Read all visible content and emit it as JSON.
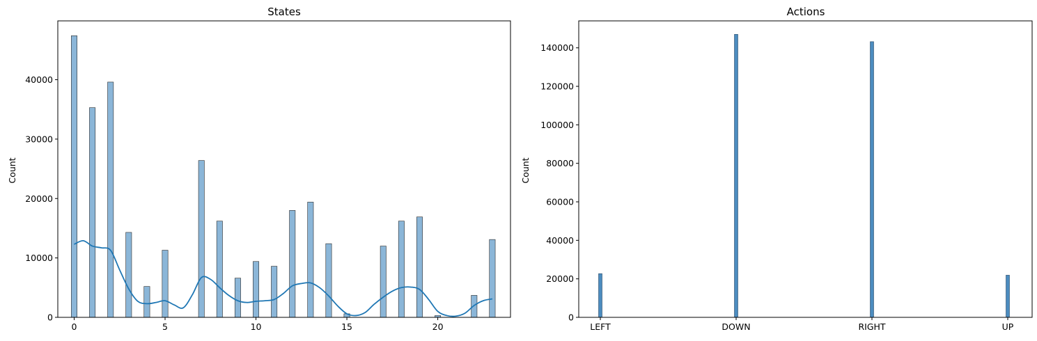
{
  "chart_data": [
    {
      "type": "bar",
      "title": "States",
      "xlabel": "",
      "ylabel": "Count",
      "xlim": [
        -0.9,
        24.0
      ],
      "ylim": [
        0,
        49900
      ],
      "xticks": [
        0,
        5,
        10,
        15,
        20
      ],
      "yticks": [
        0,
        10000,
        20000,
        30000,
        40000
      ],
      "bar_color": "#8bb6d8",
      "kde_color": "#1f77b4",
      "categories": [
        0,
        1,
        2,
        3,
        4,
        5,
        7,
        8,
        9,
        10,
        11,
        12,
        13,
        14,
        15,
        17,
        18,
        19,
        20,
        22,
        23
      ],
      "values": [
        47400,
        35300,
        39600,
        14300,
        5200,
        11300,
        26400,
        16200,
        6600,
        9400,
        8600,
        18000,
        19400,
        12400,
        600,
        12000,
        16200,
        16900,
        300,
        3700,
        13100
      ],
      "kde": {
        "x": [
          0,
          0.5,
          1,
          1.5,
          2,
          2.5,
          3,
          3.5,
          4,
          4.5,
          5,
          5.5,
          6,
          6.5,
          7,
          7.5,
          8,
          8.5,
          9,
          9.5,
          10,
          10.5,
          11,
          11.5,
          12,
          12.5,
          13,
          13.5,
          14,
          14.5,
          15,
          15.5,
          16,
          16.5,
          17,
          17.5,
          18,
          18.5,
          19,
          19.5,
          20,
          20.5,
          21,
          21.5,
          22,
          22.5,
          23
        ],
        "y": [
          12300,
          12900,
          12000,
          11700,
          11300,
          8000,
          4800,
          2700,
          2300,
          2500,
          2800,
          2100,
          1600,
          3800,
          6700,
          6400,
          5000,
          3700,
          2800,
          2500,
          2700,
          2800,
          3000,
          4000,
          5300,
          5700,
          5800,
          5000,
          3600,
          1900,
          600,
          300,
          800,
          2200,
          3400,
          4400,
          5000,
          5100,
          4700,
          3000,
          1000,
          300,
          200,
          700,
          2000,
          2800,
          3100
        ]
      }
    },
    {
      "type": "bar",
      "title": "Actions",
      "xlabel": "",
      "ylabel": "Count",
      "ylim": [
        0,
        154000
      ],
      "yticks": [
        0,
        20000,
        40000,
        60000,
        80000,
        100000,
        120000,
        140000
      ],
      "bar_color": "#4c8cbf",
      "categories": [
        "LEFT",
        "DOWN",
        "RIGHT",
        "UP"
      ],
      "values": [
        22700,
        147000,
        143200,
        21900
      ]
    }
  ]
}
